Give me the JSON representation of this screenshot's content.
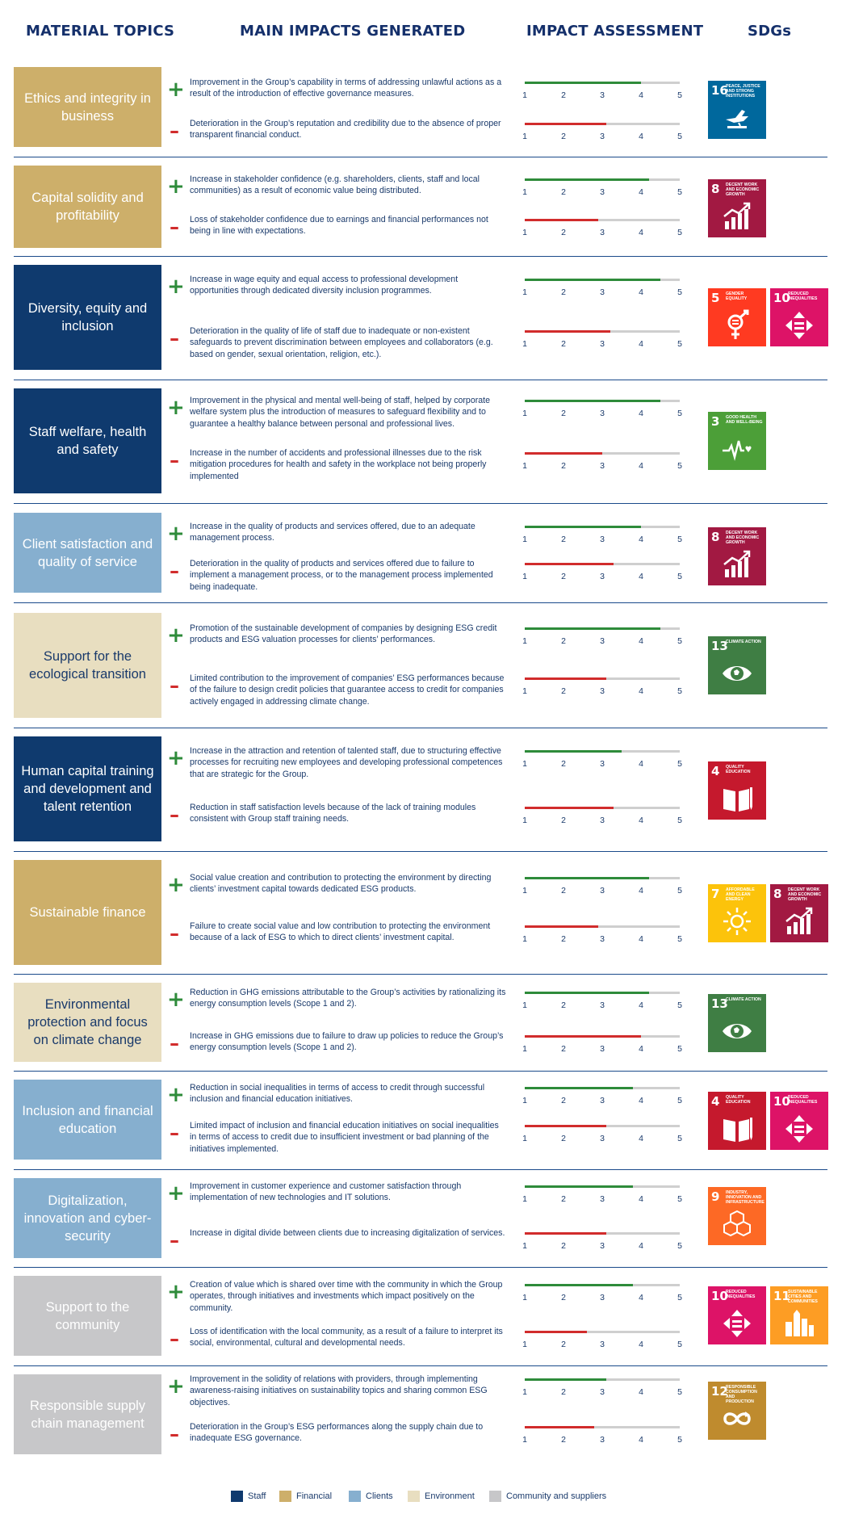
{
  "headers": {
    "topics": "MATERIAL TOPICS",
    "impacts": "MAIN IMPACTS GENERATED",
    "assessment": "IMPACT ASSESSMENT",
    "sdgs": "SDGs"
  },
  "scale_labels": [
    "1",
    "2",
    "3",
    "4",
    "5"
  ],
  "colors": {
    "staff": "#0f3a6e",
    "financial": "#cdaf6a",
    "clients": "#86afcf",
    "environment": "#e8dec0",
    "community": "#c7c7c9",
    "positive": "#2e8b3a",
    "negative": "#d12c2c"
  },
  "sdg_catalog": {
    "3": {
      "label": "GOOD HEALTH AND WELL-BEING",
      "color": "#4c9f38",
      "icon": "heartbeat-icon"
    },
    "4": {
      "label": "QUALITY EDUCATION",
      "color": "#c5192d",
      "icon": "book-icon"
    },
    "5": {
      "label": "GENDER EQUALITY",
      "color": "#ff3a21",
      "icon": "gender-icon"
    },
    "7": {
      "label": "AFFORDABLE AND CLEAN ENERGY",
      "color": "#fcc30b",
      "icon": "sun-icon"
    },
    "8": {
      "label": "DECENT WORK AND ECONOMIC GROWTH",
      "color": "#a21942",
      "icon": "growth-chart-icon"
    },
    "9": {
      "label": "INDUSTRY, INNOVATION AND INFRASTRUCTURE",
      "color": "#fd6925",
      "icon": "cubes-icon"
    },
    "10": {
      "label": "REDUCED INEQUALITIES",
      "color": "#dd1367",
      "icon": "equality-arrows-icon"
    },
    "11": {
      "label": "SUSTAINABLE CITIES AND COMMUNITIES",
      "color": "#fd9d24",
      "icon": "city-icon"
    },
    "12": {
      "label": "RESPONSIBLE CONSUMPTION AND PRODUCTION",
      "color": "#bf8b2e",
      "icon": "infinity-icon"
    },
    "13": {
      "label": "CLIMATE ACTION",
      "color": "#3f7e44",
      "icon": "eye-globe-icon"
    },
    "16": {
      "label": "PEACE, JUSTICE AND STRONG INSTITUTIONS",
      "color": "#00689d",
      "icon": "dove-icon"
    }
  },
  "topics": [
    {
      "name": "Ethics and integrity in business",
      "category": "financial",
      "positive": {
        "text": "Improvement in the Group’s capability in terms of addressing unlawful actions as a result of the introduction of effective governance measures.",
        "score": 4.0
      },
      "negative": {
        "text": "Deterioration in the Group’s reputation and credibility due to the absence of proper transparent financial conduct.",
        "score": 3.1
      },
      "sdgs": [
        "16"
      ]
    },
    {
      "name": "Capital solidity and profitability",
      "category": "financial",
      "positive": {
        "text": "Increase in stakeholder confidence (e.g. shareholders, clients, staff and local communities) as a result of economic value being distributed.",
        "score": 4.2
      },
      "negative": {
        "text": "Loss of stakeholder confidence due to earnings and financial performances not being in line with expectations.",
        "score": 2.9
      },
      "sdgs": [
        "8"
      ]
    },
    {
      "name": "Diversity, equity and inclusion",
      "category": "staff",
      "positive": {
        "text": "Increase in wage equity and equal access to professional development opportunities through dedicated diversity inclusion programmes.",
        "score": 4.5
      },
      "negative": {
        "text": "Deterioration in the quality of life of staff due to inadequate or non-existent safeguards to prevent discrimination between employees and collaborators (e.g. based on gender, sexual orientation, religion, etc.).",
        "score": 3.2
      },
      "sdgs": [
        "5",
        "10"
      ]
    },
    {
      "name": "Staff welfare, health and safety",
      "category": "staff",
      "positive": {
        "text": "Improvement in the physical and mental well-being of staff, helped by corporate welfare system plus the introduction of measures to safeguard flexibility and to guarantee a healthy balance between personal and professional lives.",
        "score": 4.5
      },
      "negative": {
        "text": "Increase in the number of accidents and professional illnesses due to the risk mitigation procedures for health and safety in the workplace not being properly implemented",
        "score": 3.0
      },
      "sdgs": [
        "3"
      ]
    },
    {
      "name": "Client satisfaction and quality of service",
      "category": "clients",
      "positive": {
        "text": "Increase in the quality of products and services offered, due to an adequate management process.",
        "score": 4.0
      },
      "negative": {
        "text": "Deterioration in the quality of products and services offered due to failure to implement a management process, or to the management process implemented being inadequate.",
        "score": 3.3
      },
      "sdgs": [
        "8"
      ]
    },
    {
      "name": "Support for the ecological transition",
      "category": "environment",
      "positive": {
        "text": "Promotion of the sustainable development of companies by designing ESG credit products and ESG valuation processes for clients’ performances.",
        "score": 4.5
      },
      "negative": {
        "text": "Limited contribution to the improvement of companies’ ESG performances because of the failure to design credit policies that guarantee access to credit for companies actively engaged in addressing climate change.",
        "score": 3.1
      },
      "sdgs": [
        "13"
      ]
    },
    {
      "name": "Human capital training and development and talent retention",
      "category": "staff",
      "positive": {
        "text": "Increase in the attraction and retention of talented staff, due to structuring effective processes for recruiting new employees and developing professional competences that are strategic for the Group.",
        "score": 3.5
      },
      "negative": {
        "text": "Reduction in staff satisfaction levels because of the lack of training modules consistent with Group staff training needs.",
        "score": 3.3
      },
      "sdgs": [
        "4"
      ]
    },
    {
      "name": "Sustainable finance",
      "category": "financial",
      "positive": {
        "text": "Social value creation and contribution to protecting the environment by directing clients’ investment capital towards dedicated ESG products.",
        "score": 4.2
      },
      "negative": {
        "text": "Failure to create social value and low contribution to protecting the environment because of a lack of  ESG to which to direct clients’ investment capital.",
        "score": 2.9
      },
      "sdgs": [
        "7",
        "8"
      ]
    },
    {
      "name": "Environmental protection and focus on climate change",
      "category": "environment",
      "positive": {
        "text": "Reduction in GHG emissions attributable to the Group’s activities by rationalizing its energy consumption levels (Scope 1 and 2).",
        "score": 4.2
      },
      "negative": {
        "text": "Increase in GHG emissions due to failure to draw up policies to reduce the Group’s energy consumption levels (Scope 1 and 2).",
        "score": 4.0
      },
      "sdgs": [
        "13"
      ]
    },
    {
      "name": "Inclusion and financial education",
      "category": "clients",
      "positive": {
        "text": "Reduction in social inequalities in terms of access to credit through successful inclusion and financial education initiatives.",
        "score": 3.8
      },
      "negative": {
        "text": "Limited impact of inclusion and financial education initiatives on social inequalities in terms of access to credit due to insufficient investment or bad planning of the initiatives implemented.",
        "score": 3.1
      },
      "sdgs": [
        "4",
        "10"
      ]
    },
    {
      "name": "Digitalization, innovation and cyber-security",
      "category": "clients",
      "positive": {
        "text": "Improvement in customer experience and customer satisfaction through implementation of new technologies and IT solutions.",
        "score": 3.8
      },
      "negative": {
        "text": "Increase in digital divide between clients due to increasing digitalization of services.",
        "score": 3.1
      },
      "sdgs": [
        "9"
      ]
    },
    {
      "name": "Support to the community",
      "category": "community",
      "positive": {
        "text": "Creation of value which is shared over time with the community in which the Group operates, through initiatives and investments which impact positively on the community.",
        "score": 3.8
      },
      "negative": {
        "text": "Loss of identification with the local community, as a result of a failure to interpret its social, environmental, cultural and developmental needs.",
        "score": 2.6
      },
      "sdgs": [
        "10",
        "11"
      ]
    },
    {
      "name": "Responsible supply chain management",
      "category": "community",
      "positive": {
        "text": "Improvement in the solidity of relations with providers, through implementing awareness-raising initiatives on sustainability topics and sharing common ESG objectives.",
        "score": 3.1
      },
      "negative": {
        "text": "Deterioration in the Group’s ESG performances along the supply chain due to inadequate ESG governance.",
        "score": 2.8
      },
      "sdgs": [
        "12"
      ]
    }
  ],
  "legend": [
    {
      "key": "staff",
      "label": "Staff"
    },
    {
      "key": "financial",
      "label": "Financial"
    },
    {
      "key": "clients",
      "label": "Clients"
    },
    {
      "key": "environment",
      "label": "Environment"
    },
    {
      "key": "community",
      "label": "Community and suppliers"
    }
  ]
}
